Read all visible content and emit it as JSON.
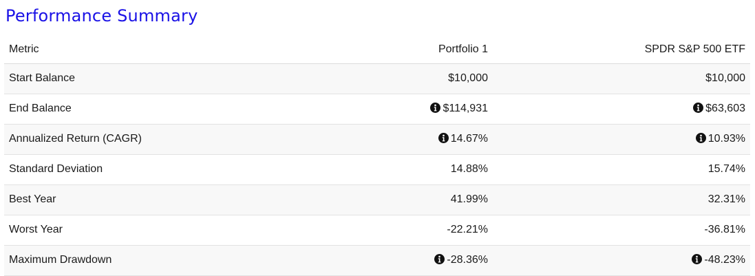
{
  "title": "Performance Summary",
  "table": {
    "headers": {
      "metric": "Metric",
      "portfolio": "Portfolio 1",
      "benchmark": "SPDR S&P 500 ETF"
    },
    "rows": [
      {
        "metric": "Start Balance",
        "portfolio": "$10,000",
        "benchmark": "$10,000",
        "portfolio_info": false,
        "benchmark_info": false
      },
      {
        "metric": "End Balance",
        "portfolio": "$114,931",
        "benchmark": "$63,603",
        "portfolio_info": true,
        "benchmark_info": true
      },
      {
        "metric": "Annualized Return (CAGR)",
        "portfolio": "14.67%",
        "benchmark": "10.93%",
        "portfolio_info": true,
        "benchmark_info": true
      },
      {
        "metric": "Standard Deviation",
        "portfolio": "14.88%",
        "benchmark": "15.74%",
        "portfolio_info": false,
        "benchmark_info": false
      },
      {
        "metric": "Best Year",
        "portfolio": "41.99%",
        "benchmark": "32.31%",
        "portfolio_info": false,
        "benchmark_info": false
      },
      {
        "metric": "Worst Year",
        "portfolio": "-22.21%",
        "benchmark": "-36.81%",
        "portfolio_info": false,
        "benchmark_info": false
      },
      {
        "metric": "Maximum Drawdown",
        "portfolio": "-28.36%",
        "benchmark": "-48.23%",
        "portfolio_info": true,
        "benchmark_info": true
      }
    ]
  },
  "icons": {
    "info": "info-circle-icon"
  },
  "colors": {
    "title": "#1a11e6",
    "stripe": "#f8f8f8",
    "text": "#1a1a1a"
  }
}
